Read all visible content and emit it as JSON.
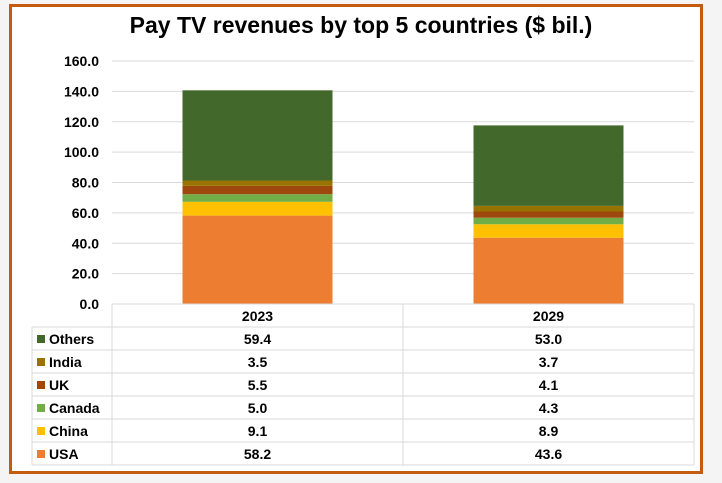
{
  "chart_data": {
    "type": "bar",
    "stacked": true,
    "title": "Pay TV revenues by top 5 countries ($ bil.)",
    "categories": [
      "2023",
      "2029"
    ],
    "series": [
      {
        "name": "USA",
        "values": [
          58.2,
          43.6
        ],
        "color": "#ED7D31"
      },
      {
        "name": "China",
        "values": [
          9.1,
          8.9
        ],
        "color": "#FFC000"
      },
      {
        "name": "Canada",
        "values": [
          5.0,
          4.3
        ],
        "color": "#70AD47"
      },
      {
        "name": "UK",
        "values": [
          5.5,
          4.1
        ],
        "color": "#9E480E"
      },
      {
        "name": "India",
        "values": [
          3.5,
          3.7
        ],
        "color": "#997300"
      },
      {
        "name": "Others",
        "values": [
          59.4,
          53.0
        ],
        "color": "#43682B"
      }
    ],
    "ylim": [
      0,
      160
    ],
    "yticks": [
      "0.0",
      "20.0",
      "40.0",
      "60.0",
      "80.0",
      "100.0",
      "120.0",
      "140.0",
      "160.0"
    ],
    "grid": true,
    "legend": "data-table",
    "border_color": "#C55A11"
  }
}
